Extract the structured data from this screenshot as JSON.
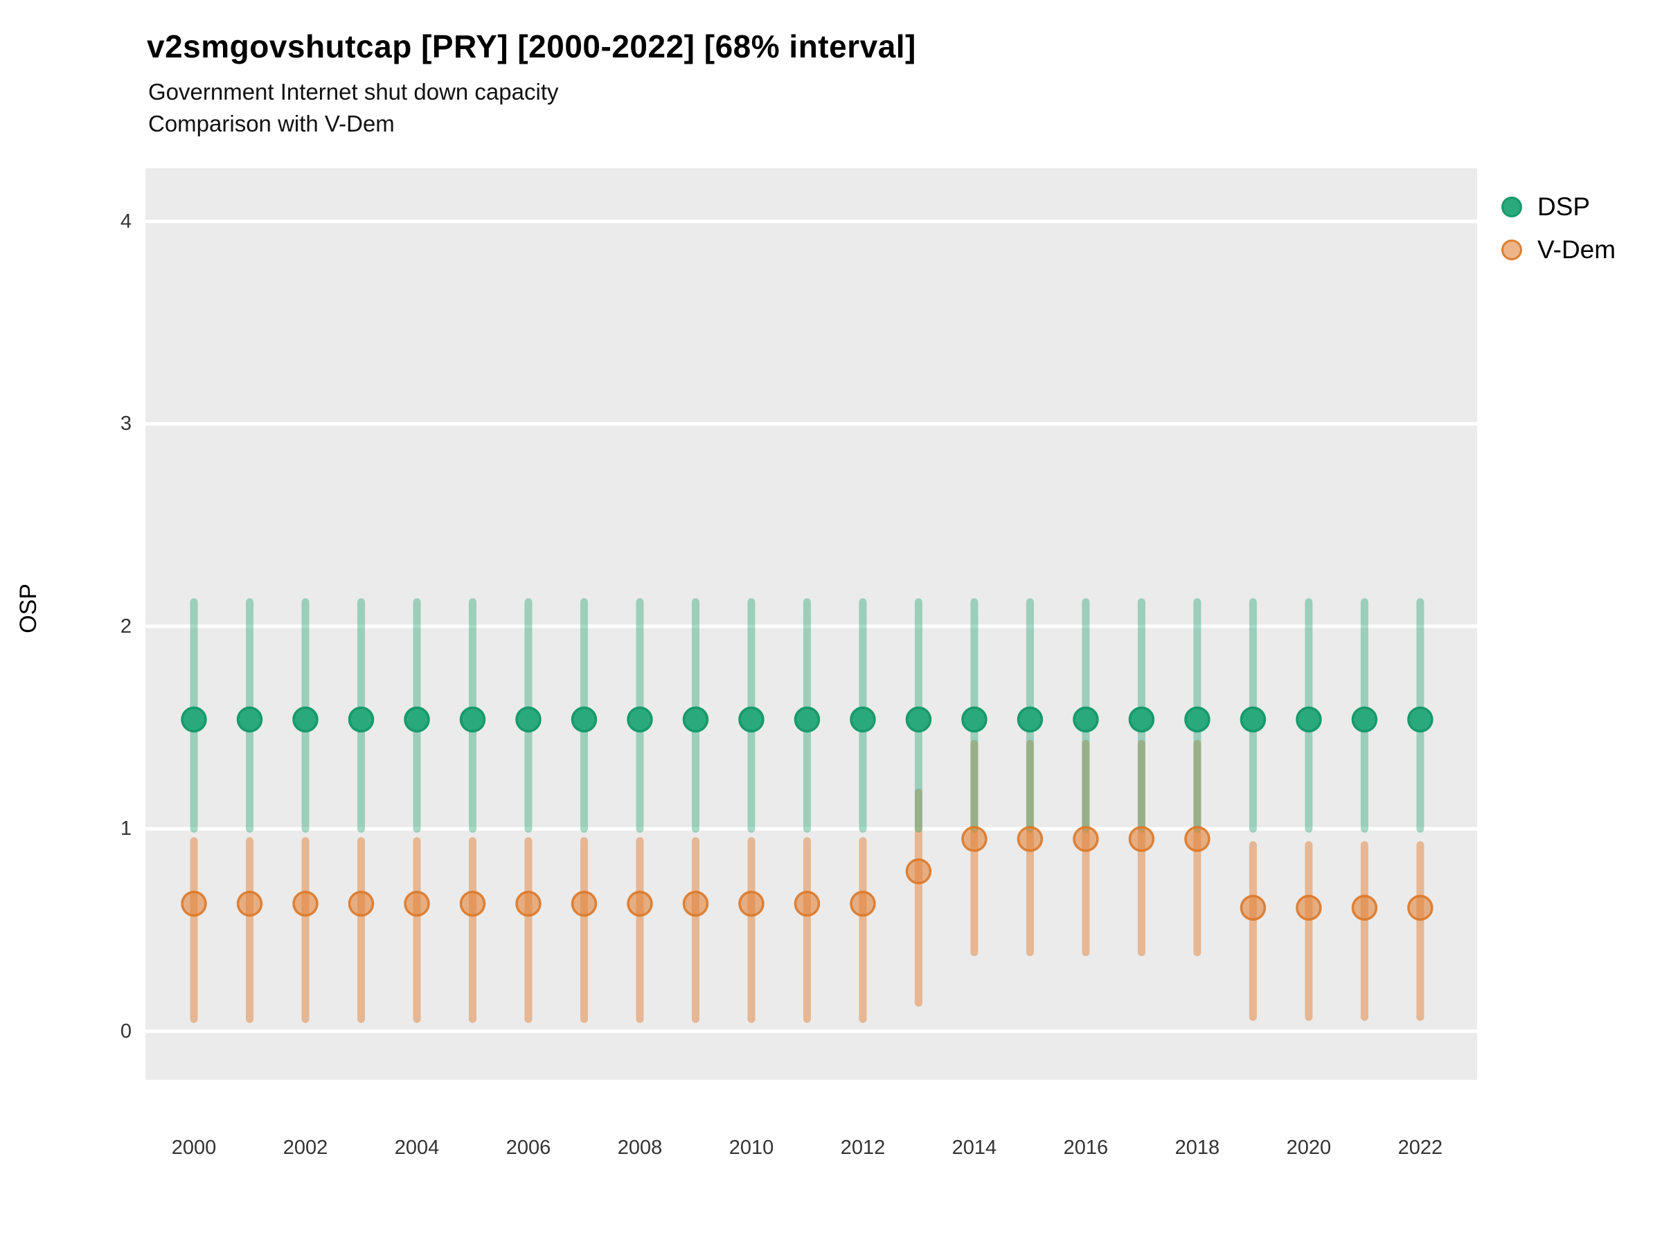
{
  "header": {
    "title": "v2smgovshutcap [PRY] [2000-2022] [68% interval]",
    "subtitle1": "Government Internet shut down capacity",
    "subtitle2": "Comparison with V-Dem"
  },
  "chart_data": {
    "type": "scatter",
    "variant": "pointrange (point estimate with 68% credible interval bars)",
    "title": "v2smgovshutcap [PRY] [2000-2022] [68% interval]",
    "subtitle": [
      "Government Internet shut down capacity",
      "Comparison with V-Dem"
    ],
    "xlabel": "",
    "ylabel": "OSP",
    "interval": "68%",
    "x": [
      2000,
      2001,
      2002,
      2003,
      2004,
      2005,
      2006,
      2007,
      2008,
      2009,
      2010,
      2011,
      2012,
      2013,
      2014,
      2015,
      2016,
      2017,
      2018,
      2019,
      2020,
      2021,
      2022
    ],
    "series": [
      {
        "name": "DSP",
        "point_color": "#2aa97c",
        "point_stroke": "#179a6b",
        "bar_color": "rgba(46,167,122,0.42)",
        "est": [
          1.54,
          1.54,
          1.54,
          1.54,
          1.54,
          1.54,
          1.54,
          1.54,
          1.54,
          1.54,
          1.54,
          1.54,
          1.54,
          1.54,
          1.54,
          1.54,
          1.54,
          1.54,
          1.54,
          1.54,
          1.54,
          1.54,
          1.54
        ],
        "lo": [
          1.0,
          1.0,
          1.0,
          1.0,
          1.0,
          1.0,
          1.0,
          1.0,
          1.0,
          1.0,
          1.0,
          1.0,
          1.0,
          1.0,
          1.0,
          1.0,
          1.0,
          1.0,
          1.0,
          1.0,
          1.0,
          1.0,
          1.0
        ],
        "hi": [
          2.12,
          2.12,
          2.12,
          2.12,
          2.12,
          2.12,
          2.12,
          2.12,
          2.12,
          2.12,
          2.12,
          2.12,
          2.12,
          2.12,
          2.12,
          2.12,
          2.12,
          2.12,
          2.12,
          2.12,
          2.12,
          2.12,
          2.12
        ]
      },
      {
        "name": "V-Dem",
        "point_color": "rgba(226,132,58,0.6)",
        "point_stroke": "rgba(219,120,40,0.9)",
        "bar_color": "rgba(226,132,58,0.5)",
        "est": [
          0.63,
          0.63,
          0.63,
          0.63,
          0.63,
          0.63,
          0.63,
          0.63,
          0.63,
          0.63,
          0.63,
          0.63,
          0.63,
          0.79,
          0.95,
          0.95,
          0.95,
          0.95,
          0.95,
          0.61,
          0.61,
          0.61,
          0.61
        ],
        "lo": [
          0.06,
          0.06,
          0.06,
          0.06,
          0.06,
          0.06,
          0.06,
          0.06,
          0.06,
          0.06,
          0.06,
          0.06,
          0.06,
          0.14,
          0.39,
          0.39,
          0.39,
          0.39,
          0.39,
          0.07,
          0.07,
          0.07,
          0.07
        ],
        "hi": [
          0.94,
          0.94,
          0.94,
          0.94,
          0.94,
          0.94,
          0.94,
          0.94,
          0.94,
          0.94,
          0.94,
          0.94,
          0.94,
          1.18,
          1.42,
          1.42,
          1.42,
          1.42,
          1.42,
          0.92,
          0.92,
          0.92,
          0.92
        ]
      }
    ],
    "x_ticks": [
      2000,
      2002,
      2004,
      2006,
      2008,
      2010,
      2012,
      2014,
      2016,
      2018,
      2020,
      2022
    ],
    "y_ticks": [
      0,
      1,
      2,
      3,
      4
    ],
    "x_range": [
      1999.13,
      2023.02
    ],
    "y_range": [
      -0.24,
      4.263
    ],
    "grid": "horizontal major gridlines only, white on grey panel",
    "legend_position": "top-right",
    "panel_color": "#EBEBEB",
    "gridline_color": "#FFFFFF"
  }
}
